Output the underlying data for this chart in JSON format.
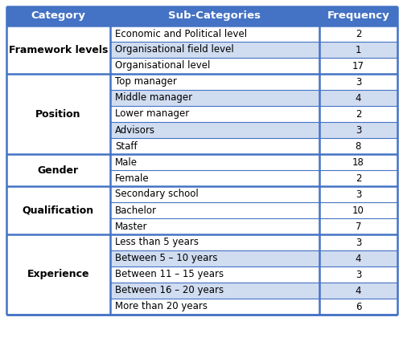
{
  "header": [
    "Category",
    "Sub-Categories",
    "Frequency"
  ],
  "header_bg": "#4472C4",
  "header_text_color": "#FFFFFF",
  "header_font_size": 9.5,
  "rows": [
    {
      "subcategory": "Economic and Political level",
      "frequency": "2",
      "sub_bg": "#FFFFFF"
    },
    {
      "subcategory": "Organisational field level",
      "frequency": "1",
      "sub_bg": "#D0DCF0"
    },
    {
      "subcategory": "Organisational level",
      "frequency": "17",
      "sub_bg": "#FFFFFF"
    },
    {
      "subcategory": "Top manager",
      "frequency": "3",
      "sub_bg": "#FFFFFF"
    },
    {
      "subcategory": "Middle manager",
      "frequency": "4",
      "sub_bg": "#D0DCF0"
    },
    {
      "subcategory": "Lower manager",
      "frequency": "2",
      "sub_bg": "#FFFFFF"
    },
    {
      "subcategory": "Advisors",
      "frequency": "3",
      "sub_bg": "#D0DCF0"
    },
    {
      "subcategory": "Staff",
      "frequency": "8",
      "sub_bg": "#FFFFFF"
    },
    {
      "subcategory": "Male",
      "frequency": "18",
      "sub_bg": "#FFFFFF"
    },
    {
      "subcategory": "Female",
      "frequency": "2",
      "sub_bg": "#FFFFFF"
    },
    {
      "subcategory": "Secondary school",
      "frequency": "3",
      "sub_bg": "#FFFFFF"
    },
    {
      "subcategory": "Bachelor",
      "frequency": "10",
      "sub_bg": "#FFFFFF"
    },
    {
      "subcategory": "Master",
      "frequency": "7",
      "sub_bg": "#FFFFFF"
    },
    {
      "subcategory": "Less than 5 years",
      "frequency": "3",
      "sub_bg": "#FFFFFF"
    },
    {
      "subcategory": "Between 5 – 10 years",
      "frequency": "4",
      "sub_bg": "#D0DCF0"
    },
    {
      "subcategory": "Between 11 – 15 years",
      "frequency": "3",
      "sub_bg": "#FFFFFF"
    },
    {
      "subcategory": "Between 16 – 20 years",
      "frequency": "4",
      "sub_bg": "#D0DCF0"
    },
    {
      "subcategory": "More than 20 years",
      "frequency": "6",
      "sub_bg": "#FFFFFF"
    }
  ],
  "category_spans": [
    {
      "label": "Framework levels",
      "start": 0,
      "end": 2
    },
    {
      "label": "Position",
      "start": 3,
      "end": 7
    },
    {
      "label": "Gender",
      "start": 8,
      "end": 9
    },
    {
      "label": "Qualification",
      "start": 10,
      "end": 12
    },
    {
      "label": "Experience",
      "start": 13,
      "end": 17
    }
  ],
  "border_color": "#4472C4",
  "cell_font_size": 8.5,
  "cat_font_size": 9.0
}
